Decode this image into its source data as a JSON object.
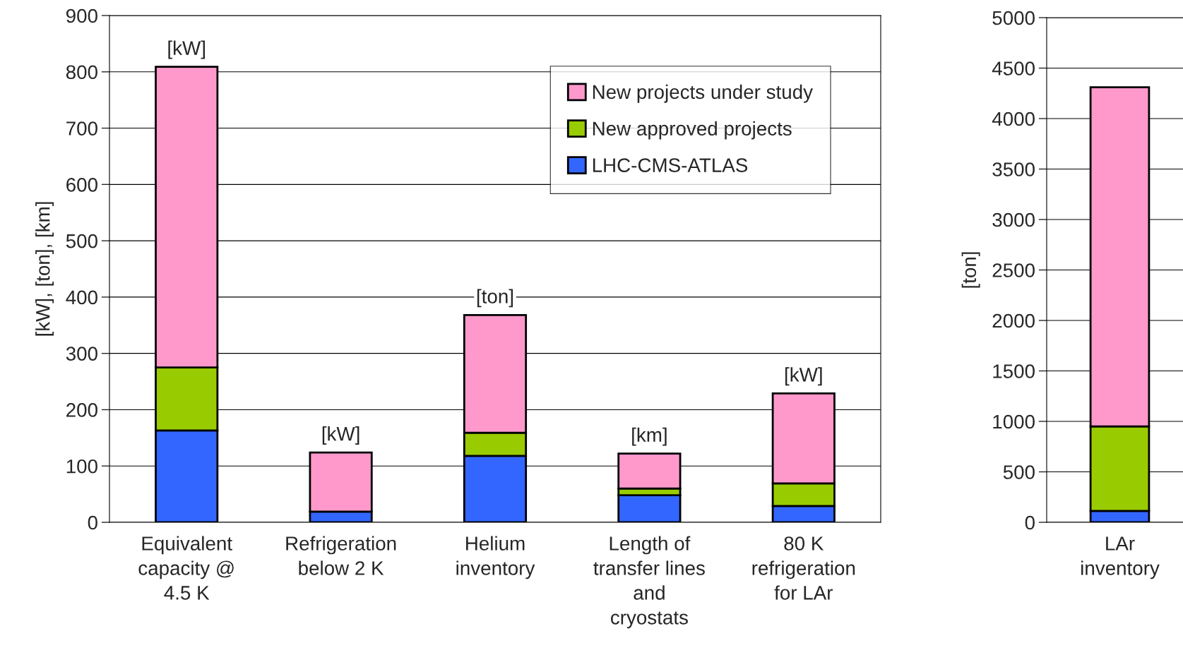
{
  "chart_data": [
    {
      "type": "bar",
      "stacked": true,
      "ylabel": "[kW], [ton], [km]",
      "categories": [
        "Equivalent\ncapacity @\n4.5 K",
        "Refrigeration\nbelow 2 K",
        "Helium\ninventory",
        "Length of\ntransfer lines\nand\ncryostats",
        "80 K\nrefrigeration\nfor LAr"
      ],
      "series": [
        {
          "name": "LHC-CMS-ATLAS",
          "color": "#3366ff",
          "values": [
            163,
            19,
            118,
            48,
            29
          ]
        },
        {
          "name": "New approved projects",
          "color": "#99cc00",
          "values": [
            112,
            null,
            41,
            12,
            40
          ]
        },
        {
          "name": "New projects under study",
          "color": "#ff99cc",
          "values": [
            534,
            105,
            209,
            62,
            160
          ]
        }
      ],
      "ylim": [
        0,
        900
      ],
      "yticks": [
        0,
        100,
        200,
        300,
        400,
        500,
        600,
        700,
        800,
        900
      ],
      "grid": "y",
      "legend": "top right",
      "annotations": [
        {
          "text": "[kW]",
          "x": "Equivalent\ncapacity @\n4.5 K",
          "y": 809
        },
        {
          "text": "[kW]",
          "x": "Refrigeration\nbelow 2 K",
          "y": 124
        },
        {
          "text": "[ton]",
          "x": "Helium\ninventory",
          "y": 368
        },
        {
          "text": "[km]",
          "x": "Length of\ntransfer lines\nand\ncryostats",
          "y": 122
        },
        {
          "text": "[kW]",
          "x": "80 K\nrefrigeration\nfor LAr",
          "y": 229
        }
      ]
    },
    {
      "type": "bar",
      "stacked": true,
      "ylabel": "[ton]",
      "categories": [
        "LAr\ninventory"
      ],
      "series": [
        {
          "color": "#3366ff",
          "values": [
            112
          ]
        },
        {
          "color": "#99cc00",
          "values": [
            838
          ]
        },
        {
          "color": "#ff99cc",
          "values": [
            3360
          ]
        }
      ],
      "ylim": [
        0,
        5000
      ],
      "yticks": [
        0,
        500,
        1000,
        1500,
        2000,
        2500,
        3000,
        3500,
        4000,
        4500,
        5000
      ],
      "grid": "y"
    }
  ]
}
